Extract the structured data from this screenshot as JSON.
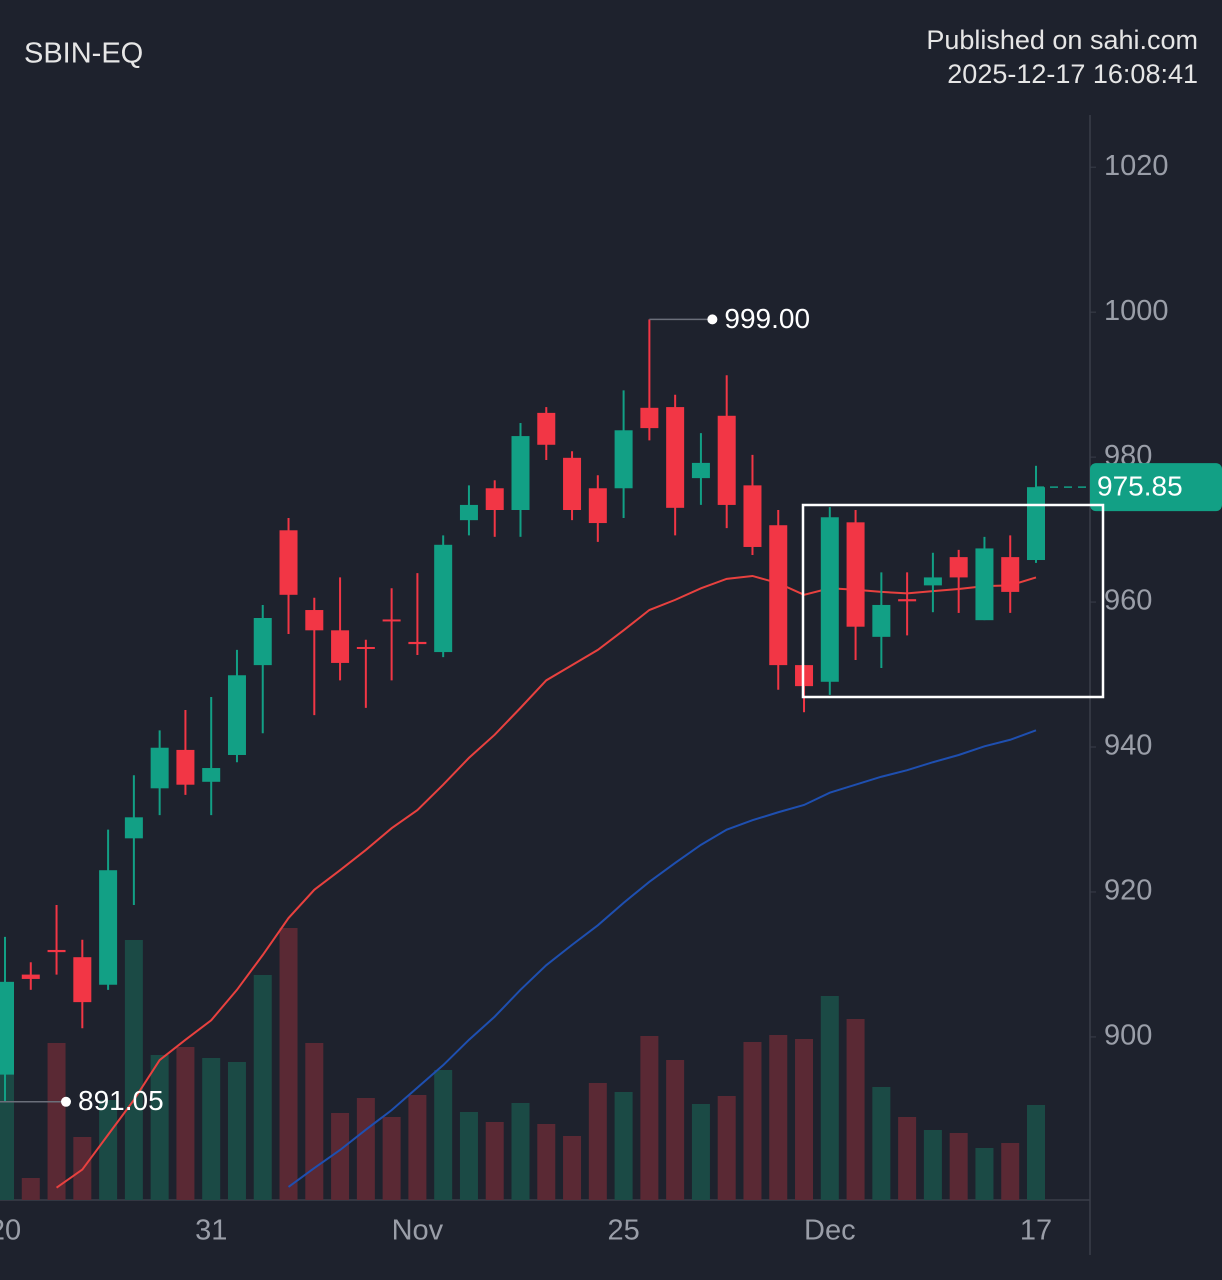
{
  "header": {
    "symbol": "SBIN-EQ",
    "published": "Published on sahi.com",
    "timestamp": "2025-12-17 16:08:41"
  },
  "chart_data": {
    "type": "candlestick",
    "categories": [
      "20",
      null,
      null,
      null,
      null,
      null,
      null,
      null,
      "31",
      null,
      null,
      null,
      null,
      null,
      null,
      null,
      "Nov",
      null,
      null,
      null,
      null,
      null,
      null,
      null,
      "25",
      null,
      null,
      null,
      null,
      null,
      null,
      null,
      "Dec",
      null,
      null,
      null,
      null,
      null,
      null,
      null,
      "17"
    ],
    "open": [
      894.8,
      908.6,
      912.0,
      911.0,
      907.2,
      927.4,
      934.3,
      939.6,
      935.2,
      938.9,
      951.3,
      969.9,
      958.9,
      956.1,
      953.8,
      957.6,
      954.5,
      953.1,
      971.3,
      975.7,
      972.7,
      986.1,
      979.9,
      975.7,
      975.7,
      986.8,
      986.9,
      977.1,
      985.7,
      976.1,
      970.6,
      951.3,
      949.0,
      971.0,
      955.2,
      960.4,
      962.3,
      966.2,
      957.5,
      966.2,
      965.8
    ],
    "high": [
      913.8,
      910.3,
      918.2,
      913.4,
      928.6,
      936.1,
      942.3,
      945.1,
      946.9,
      953.4,
      959.6,
      971.6,
      960.6,
      963.4,
      954.8,
      961.9,
      964.0,
      969.2,
      976.1,
      976.8,
      984.7,
      986.9,
      980.8,
      977.5,
      989.2,
      999,
      988.6,
      983.3,
      991.3,
      980.3,
      972.7,
      951.3,
      973.1,
      972.7,
      964.1,
      964.1,
      966.8,
      967.2,
      969.0,
      969.2,
      978.8
    ],
    "low": [
      891.05,
      906.5,
      908.6,
      901.2,
      906.5,
      918.2,
      930.6,
      933.4,
      930.6,
      937.9,
      941.9,
      955.6,
      944.4,
      949.2,
      945.4,
      949.2,
      952.7,
      952.4,
      969.2,
      969.0,
      969.0,
      979.6,
      971.3,
      968.3,
      971.6,
      982.3,
      969.2,
      973.4,
      970.2,
      966.5,
      947.9,
      944.8,
      947.2,
      952.0,
      950.9,
      955.4,
      958.6,
      958.5,
      957.5,
      958.5,
      965.4
    ],
    "close": [
      907.6,
      908.0,
      911.7,
      904.8,
      923.0,
      930.3,
      939.9,
      934.8,
      937.1,
      949.9,
      957.8,
      961.0,
      956.1,
      951.6,
      953.6,
      957.4,
      954.2,
      967.9,
      973.4,
      972.7,
      982.9,
      981.7,
      972.7,
      970.9,
      983.7,
      984.0,
      973.0,
      979.2,
      973.4,
      967.6,
      951.3,
      948.4,
      971.7,
      956.6,
      959.6,
      960.1,
      963.4,
      963.4,
      967.4,
      961.4,
      975.85
    ],
    "volume": [
      218,
      22,
      157,
      63,
      100,
      260,
      145,
      153,
      142,
      138,
      225,
      272,
      157,
      87,
      102,
      83,
      105,
      130,
      88,
      78,
      97,
      76,
      64,
      117,
      108,
      164,
      140,
      96,
      104,
      158,
      165,
      161,
      204,
      181,
      113,
      83,
      70,
      67,
      52,
      57,
      95
    ],
    "volume_lim": [
      0,
      1085
    ],
    "up_color": "#12a085",
    "down_color": "#f23645",
    "up_volume_color": "#1b4a45",
    "down_volume_color": "#5a2934",
    "moving_averages": [
      {
        "color": "#e8413f",
        "values": [
          null,
          null,
          879.2,
          881.7,
          886.5,
          891.3,
          896.8,
          899.6,
          902.3,
          906.5,
          911.3,
          916.4,
          920.3,
          923.0,
          925.8,
          928.8,
          931.3,
          934.8,
          938.5,
          941.7,
          945.4,
          949.2,
          951.3,
          953.4,
          956.1,
          958.9,
          960.3,
          961.9,
          963.2,
          963.6,
          962.6,
          961.0,
          961.9,
          961.7,
          961.4,
          961.2,
          961.5,
          961.8,
          962.2,
          962.3,
          963.4
        ]
      },
      {
        "color": "#1e4fb0",
        "values": [
          null,
          null,
          null,
          null,
          null,
          null,
          null,
          null,
          null,
          null,
          null,
          879.3,
          881.9,
          884.4,
          887.2,
          889.9,
          893.0,
          896.1,
          899.6,
          902.8,
          906.5,
          909.9,
          912.7,
          915.4,
          918.5,
          921.4,
          924.0,
          926.5,
          928.6,
          929.9,
          931.0,
          932.0,
          933.7,
          934.8,
          935.9,
          936.8,
          937.9,
          938.9,
          940.1,
          941.0,
          942.3
        ]
      }
    ],
    "annotations": [
      {
        "value": 999,
        "label": "999.00"
      },
      {
        "value": 891.05,
        "label": "891.05"
      }
    ],
    "last_price": {
      "value": 975.85,
      "label": "975.85"
    },
    "ylim": [
      877.5,
      1027.2
    ],
    "yticks": [
      900,
      920,
      940,
      960,
      980,
      1000,
      1020
    ]
  }
}
